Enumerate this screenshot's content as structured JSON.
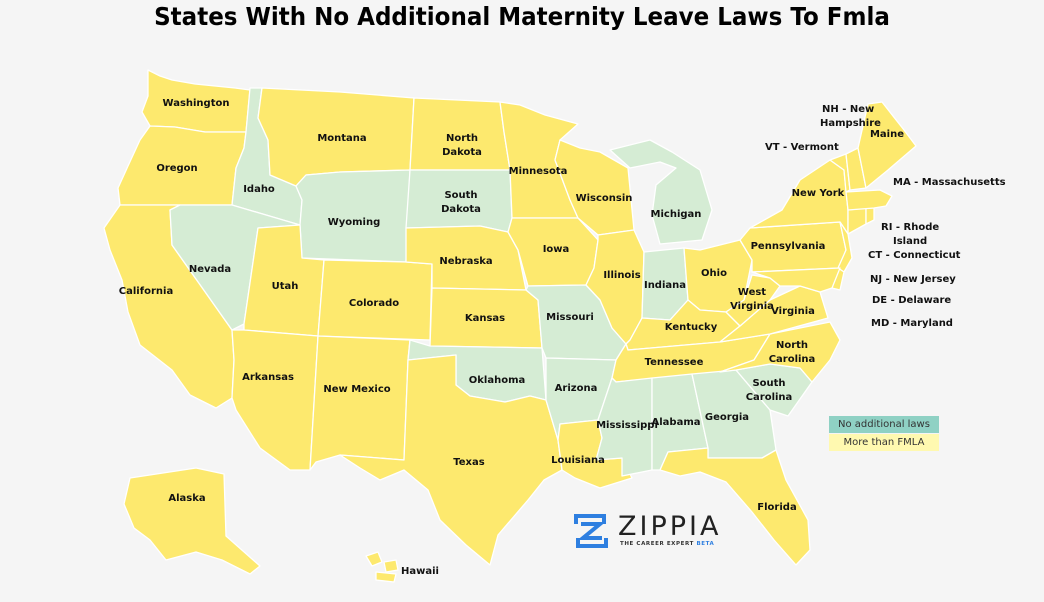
{
  "title": "States With No Additional Maternity Leave Laws To Fmla",
  "colors": {
    "more_than_fmla": "#fde96e",
    "no_additional": "#d5ecd4",
    "legend_no_additional": "#8fd1c4",
    "legend_more_than_fmla": "#fff9b0",
    "border": "#ffffff"
  },
  "legend": {
    "no_additional": "No additional laws",
    "more_than_fmla": "More than FMLA"
  },
  "states": [
    {
      "name": "Washington",
      "status": "more_than_fmla"
    },
    {
      "name": "Oregon",
      "status": "more_than_fmla"
    },
    {
      "name": "California",
      "status": "more_than_fmla"
    },
    {
      "name": "Idaho",
      "status": "no_additional"
    },
    {
      "name": "Nevada",
      "status": "no_additional"
    },
    {
      "name": "Montana",
      "status": "more_than_fmla"
    },
    {
      "name": "Wyoming",
      "status": "no_additional"
    },
    {
      "name": "Utah",
      "status": "more_than_fmla"
    },
    {
      "name": "Colorado",
      "status": "more_than_fmla"
    },
    {
      "name": "Arkansas",
      "status": "more_than_fmla"
    },
    {
      "name": "New Mexico",
      "status": "more_than_fmla"
    },
    {
      "name": "North Dakota",
      "status": "more_than_fmla"
    },
    {
      "name": "South Dakota",
      "status": "no_additional"
    },
    {
      "name": "Nebraska",
      "status": "more_than_fmla"
    },
    {
      "name": "Kansas",
      "status": "more_than_fmla"
    },
    {
      "name": "Oklahoma",
      "status": "no_additional"
    },
    {
      "name": "Texas",
      "status": "more_than_fmla"
    },
    {
      "name": "Minnesota",
      "status": "more_than_fmla"
    },
    {
      "name": "Iowa",
      "status": "more_than_fmla"
    },
    {
      "name": "Missouri",
      "status": "no_additional"
    },
    {
      "name": "Arizona",
      "status": "no_additional"
    },
    {
      "name": "Louisiana",
      "status": "more_than_fmla"
    },
    {
      "name": "Wisconsin",
      "status": "more_than_fmla"
    },
    {
      "name": "Illinois",
      "status": "more_than_fmla"
    },
    {
      "name": "Michigan",
      "status": "no_additional"
    },
    {
      "name": "Indiana",
      "status": "no_additional"
    },
    {
      "name": "Ohio",
      "status": "more_than_fmla"
    },
    {
      "name": "Kentucky",
      "status": "more_than_fmla"
    },
    {
      "name": "Tennessee",
      "status": "more_than_fmla"
    },
    {
      "name": "Mississippi",
      "status": "no_additional"
    },
    {
      "name": "Alabama",
      "status": "no_additional"
    },
    {
      "name": "Georgia",
      "status": "no_additional"
    },
    {
      "name": "Florida",
      "status": "more_than_fmla"
    },
    {
      "name": "South Carolina",
      "status": "no_additional"
    },
    {
      "name": "North Carolina",
      "status": "more_than_fmla"
    },
    {
      "name": "Virginia",
      "status": "more_than_fmla"
    },
    {
      "name": "West Virginia",
      "status": "more_than_fmla"
    },
    {
      "name": "Pennsylvania",
      "status": "more_than_fmla"
    },
    {
      "name": "New York",
      "status": "more_than_fmla"
    },
    {
      "name": "Maine",
      "status": "more_than_fmla"
    },
    {
      "name": "Alaska",
      "status": "more_than_fmla"
    },
    {
      "name": "Hawaii",
      "status": "more_than_fmla"
    }
  ],
  "abbreviations": {
    "nh": "NH - New Hampshire",
    "vt": "VT - Vermont",
    "ma": "MA - Massachusetts",
    "ri": "RI - Rhode Island",
    "ct": "CT - Connecticut",
    "nj": "NJ - New Jersey",
    "de": "DE - Delaware",
    "md": "MD - Maryland"
  },
  "logo": {
    "wordmark": "ZIPPIA",
    "tagline": "THE CAREER EXPERT",
    "beta": "BETA"
  }
}
